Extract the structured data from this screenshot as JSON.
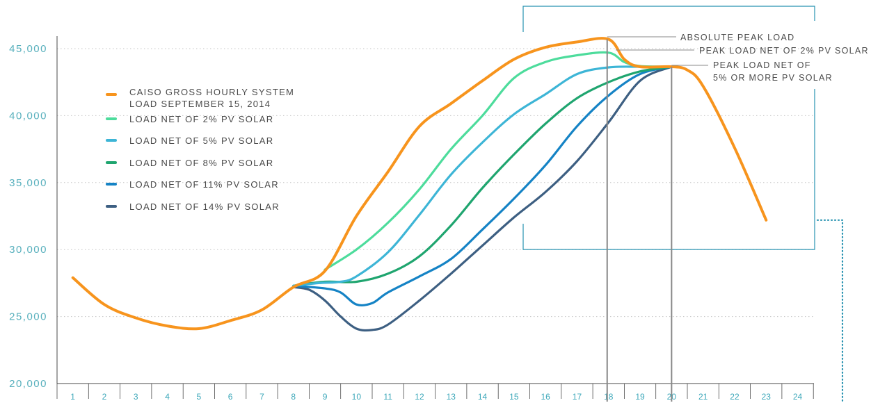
{
  "chart_data": {
    "type": "line",
    "ylim": [
      20000,
      45000
    ],
    "yticks": [
      "20,000",
      "25,000",
      "30,000",
      "35,000",
      "40,000",
      "45,000"
    ],
    "ytick_values": [
      20000,
      25000,
      30000,
      35000,
      40000,
      45000
    ],
    "x": [
      1,
      2,
      3,
      4,
      5,
      6,
      7,
      8,
      9,
      10,
      11,
      12,
      13,
      14,
      15,
      16,
      17,
      18,
      19,
      20,
      21,
      22,
      23,
      24
    ],
    "xtick_labels": [
      "1",
      "2",
      "3",
      "4",
      "5",
      "6",
      "7",
      "8",
      "9",
      "10",
      "11",
      "12",
      "13",
      "14",
      "15",
      "16",
      "17",
      "18",
      "19",
      "20",
      "21",
      "22",
      "23",
      "24"
    ],
    "grid": "horizontal dotted",
    "legend_position": "upper-left",
    "series": [
      {
        "name": "CAISO GROSS HOURLY SYSTEM LOAD SEPTEMBER 15, 2014",
        "color": "#f7941d",
        "x": [
          1,
          2,
          3,
          4,
          5,
          6,
          7,
          8,
          9,
          10,
          11,
          12,
          13,
          14,
          15,
          16,
          17,
          18,
          18.5,
          19,
          20,
          20.5,
          21,
          22,
          23
        ],
        "values": [
          27900,
          25900,
          24900,
          24300,
          24100,
          24700,
          25500,
          27200,
          28400,
          32500,
          35800,
          39200,
          40900,
          42600,
          44200,
          45100,
          45500,
          45700,
          44200,
          43650,
          43650,
          43400,
          42200,
          37600,
          32200
        ]
      },
      {
        "name": "LOAD NET OF 2% PV SOLAR",
        "color": "#4ddc9c",
        "x": [
          9,
          10,
          11,
          12,
          13,
          14,
          15,
          16,
          17,
          18,
          18.5,
          19,
          20
        ],
        "values": [
          28500,
          30000,
          32000,
          34500,
          37500,
          40000,
          42800,
          44000,
          44500,
          44700,
          44000,
          43700,
          43650
        ]
      },
      {
        "name": "LOAD NET OF 5% PV SOLAR",
        "color": "#3db5d6",
        "x": [
          8,
          8.8,
          9.5,
          10,
          11,
          12,
          13,
          14,
          15,
          16,
          17,
          18,
          19,
          20
        ],
        "values": [
          27300,
          27500,
          27600,
          28000,
          29800,
          32600,
          35600,
          38000,
          40100,
          41600,
          43100,
          43600,
          43650,
          43650
        ]
      },
      {
        "name": "LOAD NET OF 8% PV SOLAR",
        "color": "#1fa56f",
        "x": [
          8,
          9,
          10,
          11,
          12,
          13,
          14,
          15,
          16,
          17,
          18,
          19,
          20
        ],
        "values": [
          27300,
          27600,
          27600,
          28200,
          29500,
          31800,
          34600,
          37100,
          39400,
          41300,
          42500,
          43300,
          43650
        ]
      },
      {
        "name": "LOAD NET OF 11% PV SOLAR",
        "color": "#1583c5",
        "x": [
          8,
          9,
          9.5,
          10,
          10.5,
          11,
          12,
          13,
          14,
          15,
          16,
          17,
          18,
          19,
          20
        ],
        "values": [
          27300,
          27100,
          26800,
          25900,
          26000,
          26800,
          28000,
          29300,
          31500,
          33800,
          36300,
          39200,
          41500,
          43100,
          43650
        ]
      },
      {
        "name": "LOAD NET OF 14% PV SOLAR",
        "color": "#3d5f82",
        "x": [
          8,
          8.5,
          9,
          9.5,
          10,
          10.5,
          11,
          12,
          13,
          14,
          15,
          16,
          17,
          18,
          19,
          20
        ],
        "values": [
          27200,
          27000,
          26200,
          25000,
          24100,
          24000,
          24400,
          26200,
          28200,
          30300,
          32400,
          34300,
          36600,
          39500,
          42600,
          43650
        ]
      }
    ],
    "annotations": [
      {
        "text": "ABSOLUTE PEAK LOAD"
      },
      {
        "text": "PEAK LOAD NET OF 2% PV SOLAR"
      },
      {
        "text_lines": [
          "PEAK LOAD NET OF",
          "5% OR MORE PV SOLAR"
        ]
      }
    ]
  },
  "colors": {
    "axis": "#4a4a4a",
    "grid": "#c5c5c5",
    "tick_text": "#58b0bd",
    "callout_box": "#2792b0",
    "marker_line": "#888888"
  }
}
